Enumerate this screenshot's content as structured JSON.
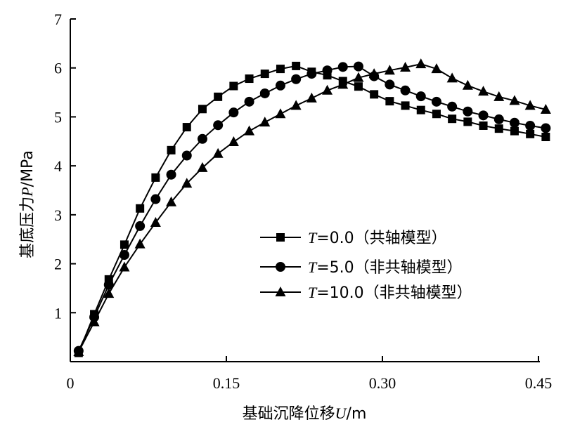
{
  "chart_data": {
    "type": "line",
    "xlabel": "基础沉降位移U/m",
    "xlabel_parts": {
      "prefix": "基础沉降位移",
      "var": "U",
      "unit": "/m"
    },
    "ylabel": "基底压力P/MPa",
    "ylabel_parts": {
      "prefix": "基底压力",
      "var": "P",
      "unit": "/MPa"
    },
    "xlim": [
      0,
      0.45
    ],
    "ylim": [
      0,
      7
    ],
    "x_ticks": [
      0,
      0.15,
      0.3,
      0.45
    ],
    "x_tick_labels": [
      "0",
      "0.15",
      "0.30",
      "0.45"
    ],
    "y_ticks": [
      1,
      2,
      3,
      4,
      5,
      6,
      7
    ],
    "y_tick_labels": [
      "1",
      "2",
      "3",
      "4",
      "5",
      "6",
      "7"
    ],
    "grid": false,
    "legend_position": "center-right",
    "series": [
      {
        "name": "T=0.0（共轴模型）",
        "legend_var": "T",
        "legend_rest": "=0.0（共轴模型）",
        "marker": "square",
        "x": [
          0.008,
          0.023,
          0.037,
          0.052,
          0.067,
          0.082,
          0.097,
          0.112,
          0.127,
          0.142,
          0.157,
          0.172,
          0.187,
          0.202,
          0.217,
          0.232,
          0.247,
          0.262,
          0.277,
          0.292,
          0.307,
          0.322,
          0.337,
          0.352,
          0.367,
          0.382,
          0.397,
          0.412,
          0.427,
          0.442,
          0.457
        ],
        "y": [
          0.18,
          0.97,
          1.68,
          2.39,
          3.13,
          3.76,
          4.32,
          4.79,
          5.16,
          5.41,
          5.63,
          5.78,
          5.88,
          5.98,
          6.04,
          5.92,
          5.85,
          5.73,
          5.62,
          5.46,
          5.32,
          5.23,
          5.14,
          5.06,
          4.96,
          4.9,
          4.82,
          4.76,
          4.71,
          4.65,
          4.59
        ]
      },
      {
        "name": "T=5.0（非共轴模型）",
        "legend_var": "T",
        "legend_rest": "=5.0（非共轴模型）",
        "marker": "circle",
        "x": [
          0.008,
          0.023,
          0.037,
          0.052,
          0.067,
          0.082,
          0.097,
          0.112,
          0.127,
          0.142,
          0.157,
          0.172,
          0.187,
          0.202,
          0.217,
          0.232,
          0.247,
          0.262,
          0.277,
          0.292,
          0.307,
          0.322,
          0.337,
          0.352,
          0.367,
          0.382,
          0.397,
          0.412,
          0.427,
          0.442,
          0.457
        ],
        "y": [
          0.22,
          0.91,
          1.57,
          2.18,
          2.77,
          3.32,
          3.82,
          4.21,
          4.55,
          4.83,
          5.09,
          5.31,
          5.48,
          5.64,
          5.77,
          5.88,
          5.95,
          6.02,
          6.03,
          5.83,
          5.66,
          5.54,
          5.42,
          5.31,
          5.21,
          5.11,
          5.03,
          4.95,
          4.88,
          4.82,
          4.77
        ]
      },
      {
        "name": "T=10.0（非共轴模型）",
        "legend_var": "T",
        "legend_rest": "=10.0（非共轴模型）",
        "marker": "triangle",
        "x": [
          0.008,
          0.023,
          0.037,
          0.052,
          0.067,
          0.082,
          0.097,
          0.112,
          0.127,
          0.142,
          0.157,
          0.172,
          0.187,
          0.202,
          0.217,
          0.232,
          0.247,
          0.262,
          0.277,
          0.292,
          0.307,
          0.322,
          0.337,
          0.352,
          0.367,
          0.382,
          0.397,
          0.412,
          0.427,
          0.442,
          0.457
        ],
        "y": [
          0.2,
          0.81,
          1.39,
          1.93,
          2.4,
          2.84,
          3.26,
          3.64,
          3.96,
          4.25,
          4.49,
          4.71,
          4.89,
          5.06,
          5.23,
          5.38,
          5.54,
          5.66,
          5.8,
          5.88,
          5.95,
          6.01,
          6.08,
          5.98,
          5.79,
          5.64,
          5.52,
          5.41,
          5.33,
          5.23,
          5.15
        ]
      }
    ]
  }
}
